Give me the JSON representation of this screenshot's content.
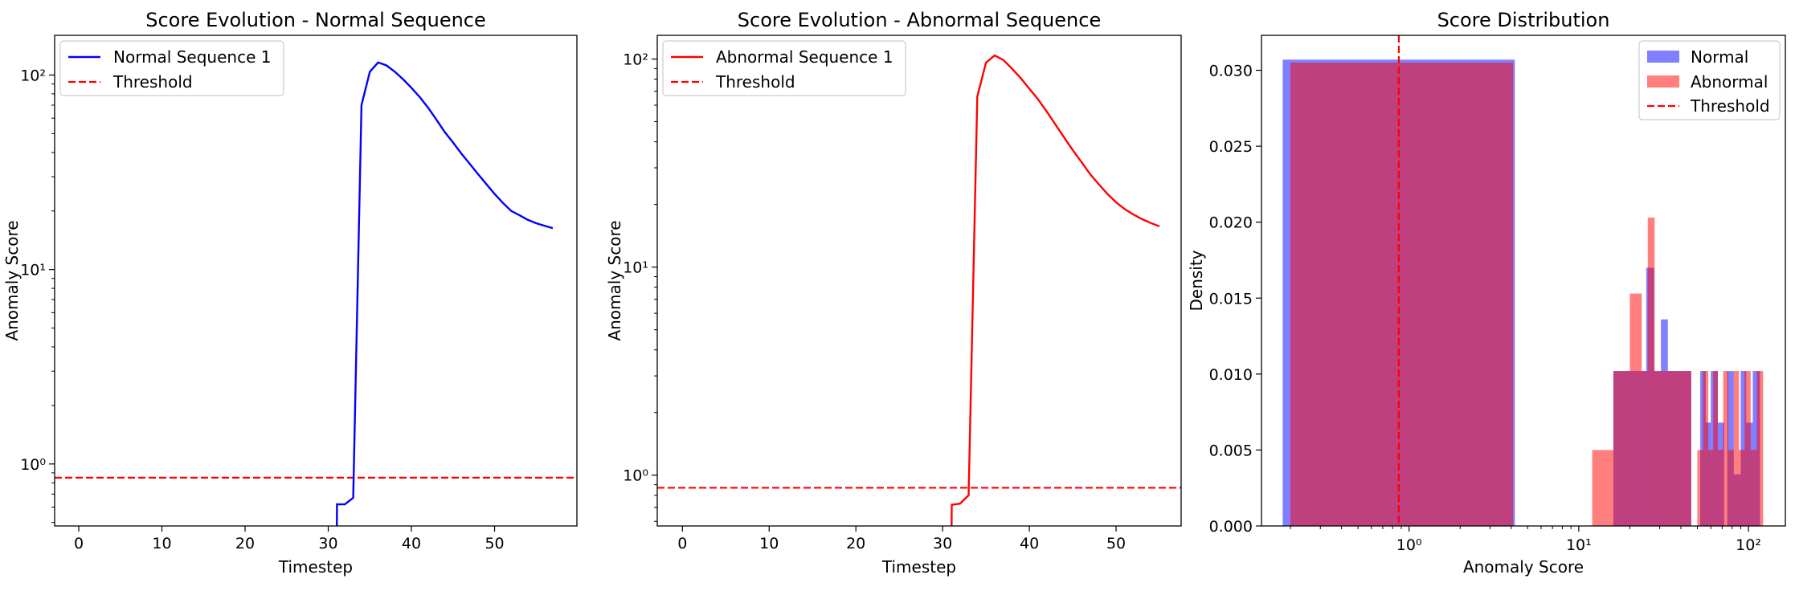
{
  "chart_data": [
    {
      "type": "line",
      "title": "Score Evolution - Normal Sequence",
      "xlabel": "Timestep",
      "ylabel": "Anomaly Score",
      "yscale": "log",
      "xlim": [
        -2.9,
        59.9
      ],
      "ylim": [
        0.48,
        160
      ],
      "xticks": [
        0,
        10,
        20,
        30,
        40,
        50
      ],
      "yticks": [
        {
          "value": 1,
          "label": "10⁰"
        },
        {
          "value": 10,
          "label": "10¹"
        },
        {
          "value": 100,
          "label": "10²"
        }
      ],
      "legend": "upper-left",
      "threshold": 0.85,
      "series": [
        {
          "name": "Normal Sequence 1",
          "color": "#0000ff",
          "x": [
            31,
            31.05,
            32,
            33,
            34,
            35,
            36,
            37,
            38,
            39,
            40,
            41,
            42,
            43,
            44,
            45,
            46,
            47,
            48,
            49,
            50,
            51,
            52,
            53,
            54,
            55,
            56,
            57
          ],
          "y": [
            0.3,
            0.62,
            0.62,
            0.67,
            70,
            104,
            116,
            112,
            104,
            95,
            86,
            77,
            68,
            59,
            51,
            45,
            39.5,
            35,
            31,
            27.5,
            24.5,
            22,
            20,
            19,
            18,
            17.3,
            16.8,
            16.3
          ]
        },
        {
          "name": "Threshold",
          "color": "#ff0000",
          "dash": true
        }
      ]
    },
    {
      "type": "line",
      "title": "Score Evolution - Abnormal Sequence",
      "xlabel": "Timestep",
      "ylabel": "Anomaly Score",
      "yscale": "log",
      "xlim": [
        -2.9,
        57.5
      ],
      "ylim": [
        0.57,
        130
      ],
      "xticks": [
        0,
        10,
        20,
        30,
        40,
        50
      ],
      "yticks": [
        {
          "value": 1,
          "label": "10⁰"
        },
        {
          "value": 10,
          "label": "10¹"
        },
        {
          "value": 100,
          "label": "10²"
        }
      ],
      "legend": "upper-left",
      "threshold": 0.87,
      "series": [
        {
          "name": "Abnormal Sequence 1",
          "color": "#ff0000",
          "x": [
            31,
            31.05,
            32,
            33,
            34,
            35,
            36,
            37,
            38,
            39,
            40,
            41,
            42,
            43,
            44,
            45,
            46,
            47,
            48,
            49,
            50,
            51,
            52,
            53,
            54,
            55
          ],
          "y": [
            0.3,
            0.72,
            0.73,
            0.8,
            66,
            96,
            104,
            99,
            90,
            81,
            72,
            64,
            56,
            48.5,
            42,
            36.5,
            32,
            28,
            25,
            22.5,
            20.5,
            19,
            17.9,
            17,
            16.3,
            15.7
          ]
        },
        {
          "name": "Threshold",
          "color": "#ff0000",
          "dash": true
        }
      ]
    },
    {
      "type": "histogram",
      "title": "Score Distribution",
      "xlabel": "Anomaly Score",
      "ylabel": "Density",
      "xscale": "log",
      "xlim": [
        0.135,
        165
      ],
      "ylim": [
        0,
        0.0323
      ],
      "xticks": [
        {
          "value": 1,
          "label": "10⁰"
        },
        {
          "value": 10,
          "label": "10¹"
        },
        {
          "value": 100,
          "label": "10²"
        }
      ],
      "yticks": [
        0,
        0.005,
        0.01,
        0.015,
        0.02,
        0.025,
        0.03
      ],
      "legend": "upper-right",
      "threshold": 0.87,
      "series": [
        {
          "name": "Normal",
          "color": "#0000ff",
          "bins": [
            {
              "x0": 0.18,
              "x1": 4.2,
              "density": 0.0307
            },
            {
              "x0": 16,
              "x1": 22,
              "density": 0.0102
            },
            {
              "x0": 22,
              "x1": 25,
              "density": 0.0102
            },
            {
              "x0": 25,
              "x1": 27.8,
              "density": 0.017
            },
            {
              "x0": 27.8,
              "x1": 30.5,
              "density": 0.0102
            },
            {
              "x0": 30.5,
              "x1": 33.5,
              "density": 0.0136
            },
            {
              "x0": 33.5,
              "x1": 46,
              "density": 0.0102
            },
            {
              "x0": 52,
              "x1": 56,
              "density": 0.0102
            },
            {
              "x0": 56,
              "x1": 60,
              "density": 0.0068
            },
            {
              "x0": 60,
              "x1": 66,
              "density": 0.0102
            },
            {
              "x0": 66,
              "x1": 72,
              "density": 0.0068
            },
            {
              "x0": 75,
              "x1": 82,
              "density": 0.0102
            },
            {
              "x0": 82,
              "x1": 90,
              "density": 0.0034
            },
            {
              "x0": 90,
              "x1": 97,
              "density": 0.0102
            },
            {
              "x0": 97,
              "x1": 106,
              "density": 0.0068
            },
            {
              "x0": 106,
              "x1": 117,
              "density": 0.0102
            }
          ]
        },
        {
          "name": "Abnormal",
          "color": "#ff0000",
          "bins": [
            {
              "x0": 0.2,
              "x1": 4.1,
              "density": 0.0305
            },
            {
              "x0": 12,
              "x1": 16,
              "density": 0.005
            },
            {
              "x0": 16,
              "x1": 20,
              "density": 0.0102
            },
            {
              "x0": 20,
              "x1": 23.5,
              "density": 0.0153
            },
            {
              "x0": 23.5,
              "x1": 25.5,
              "density": 0.0102
            },
            {
              "x0": 25.5,
              "x1": 28,
              "density": 0.0203
            },
            {
              "x0": 28,
              "x1": 46,
              "density": 0.0102
            },
            {
              "x0": 50,
              "x1": 54,
              "density": 0.005
            },
            {
              "x0": 54,
              "x1": 58,
              "density": 0.0102
            },
            {
              "x0": 58,
              "x1": 62,
              "density": 0.005
            },
            {
              "x0": 62,
              "x1": 66,
              "density": 0.0102
            },
            {
              "x0": 66,
              "x1": 71,
              "density": 0.005
            },
            {
              "x0": 71,
              "x1": 76,
              "density": 0.0102
            },
            {
              "x0": 76,
              "x1": 82,
              "density": 0.005
            },
            {
              "x0": 82,
              "x1": 88,
              "density": 0.0102
            },
            {
              "x0": 88,
              "x1": 95,
              "density": 0.005
            },
            {
              "x0": 95,
              "x1": 103,
              "density": 0.0102
            },
            {
              "x0": 103,
              "x1": 112,
              "density": 0.005
            },
            {
              "x0": 112,
              "x1": 122,
              "density": 0.0102
            }
          ]
        },
        {
          "name": "Threshold",
          "color": "#ff0000",
          "dash": true
        }
      ]
    }
  ]
}
